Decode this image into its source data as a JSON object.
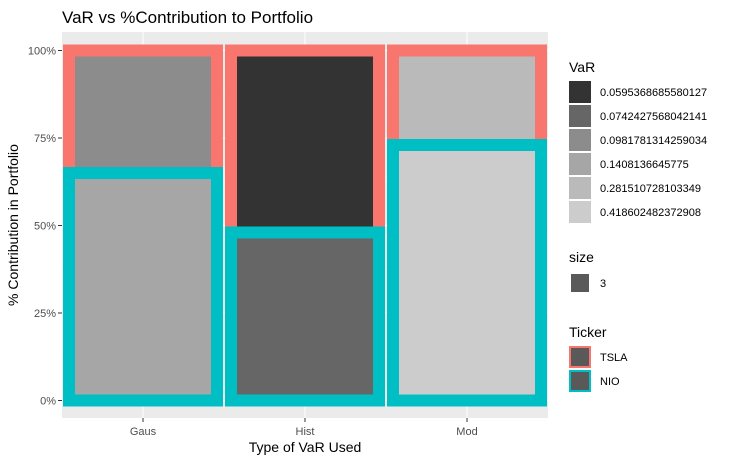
{
  "chart_data": {
    "type": "bar",
    "title": "VaR vs %Contribution to Portfolio",
    "xlabel": "Type of VaR Used",
    "ylabel": "% Contribution in Portfolio",
    "categories": [
      "Gaus",
      "Hist",
      "Mod"
    ],
    "y_ticks": [
      "0%",
      "25%",
      "50%",
      "75%",
      "100%"
    ],
    "ylim": [
      0,
      1
    ],
    "grid": true,
    "stacked": true,
    "bars": [
      {
        "category": "Gaus",
        "ticker": "TSLA",
        "contribution": 0.35,
        "var_label": "0.0981781314259034"
      },
      {
        "category": "Gaus",
        "ticker": "NIO",
        "contribution": 0.65,
        "var_label": "0.1408136645775"
      },
      {
        "category": "Hist",
        "ticker": "TSLA",
        "contribution": 0.52,
        "var_label": "0.0595368685580127"
      },
      {
        "category": "Hist",
        "ticker": "NIO",
        "contribution": 0.48,
        "var_label": "0.0742427568042141"
      },
      {
        "category": "Mod",
        "ticker": "TSLA",
        "contribution": 0.27,
        "var_label": "0.281510728103349"
      },
      {
        "category": "Mod",
        "ticker": "NIO",
        "contribution": 0.73,
        "var_label": "0.418602482372908"
      }
    ],
    "legends": {
      "var": {
        "title": "VaR",
        "items": [
          {
            "label": "0.0595368685580127",
            "color": "#333333"
          },
          {
            "label": "0.0742427568042141",
            "color": "#666666"
          },
          {
            "label": "0.0981781314259034",
            "color": "#8c8c8c"
          },
          {
            "label": "0.1408136645775",
            "color": "#a6a6a6"
          },
          {
            "label": "0.281510728103349",
            "color": "#bababa"
          },
          {
            "label": "0.418602482372908",
            "color": "#cccccc"
          }
        ]
      },
      "size": {
        "title": "size",
        "items": [
          {
            "label": "3",
            "color": "#595959"
          }
        ]
      },
      "ticker": {
        "title": "Ticker",
        "items": [
          {
            "label": "TSLA",
            "color": "#f8766d"
          },
          {
            "label": "NIO",
            "color": "#00bfc4"
          }
        ]
      }
    },
    "colors": {
      "panel_bg": "#ebebeb",
      "grid_major": "#ffffff",
      "tsla": "#f8766d",
      "nio": "#00bfc4"
    }
  }
}
